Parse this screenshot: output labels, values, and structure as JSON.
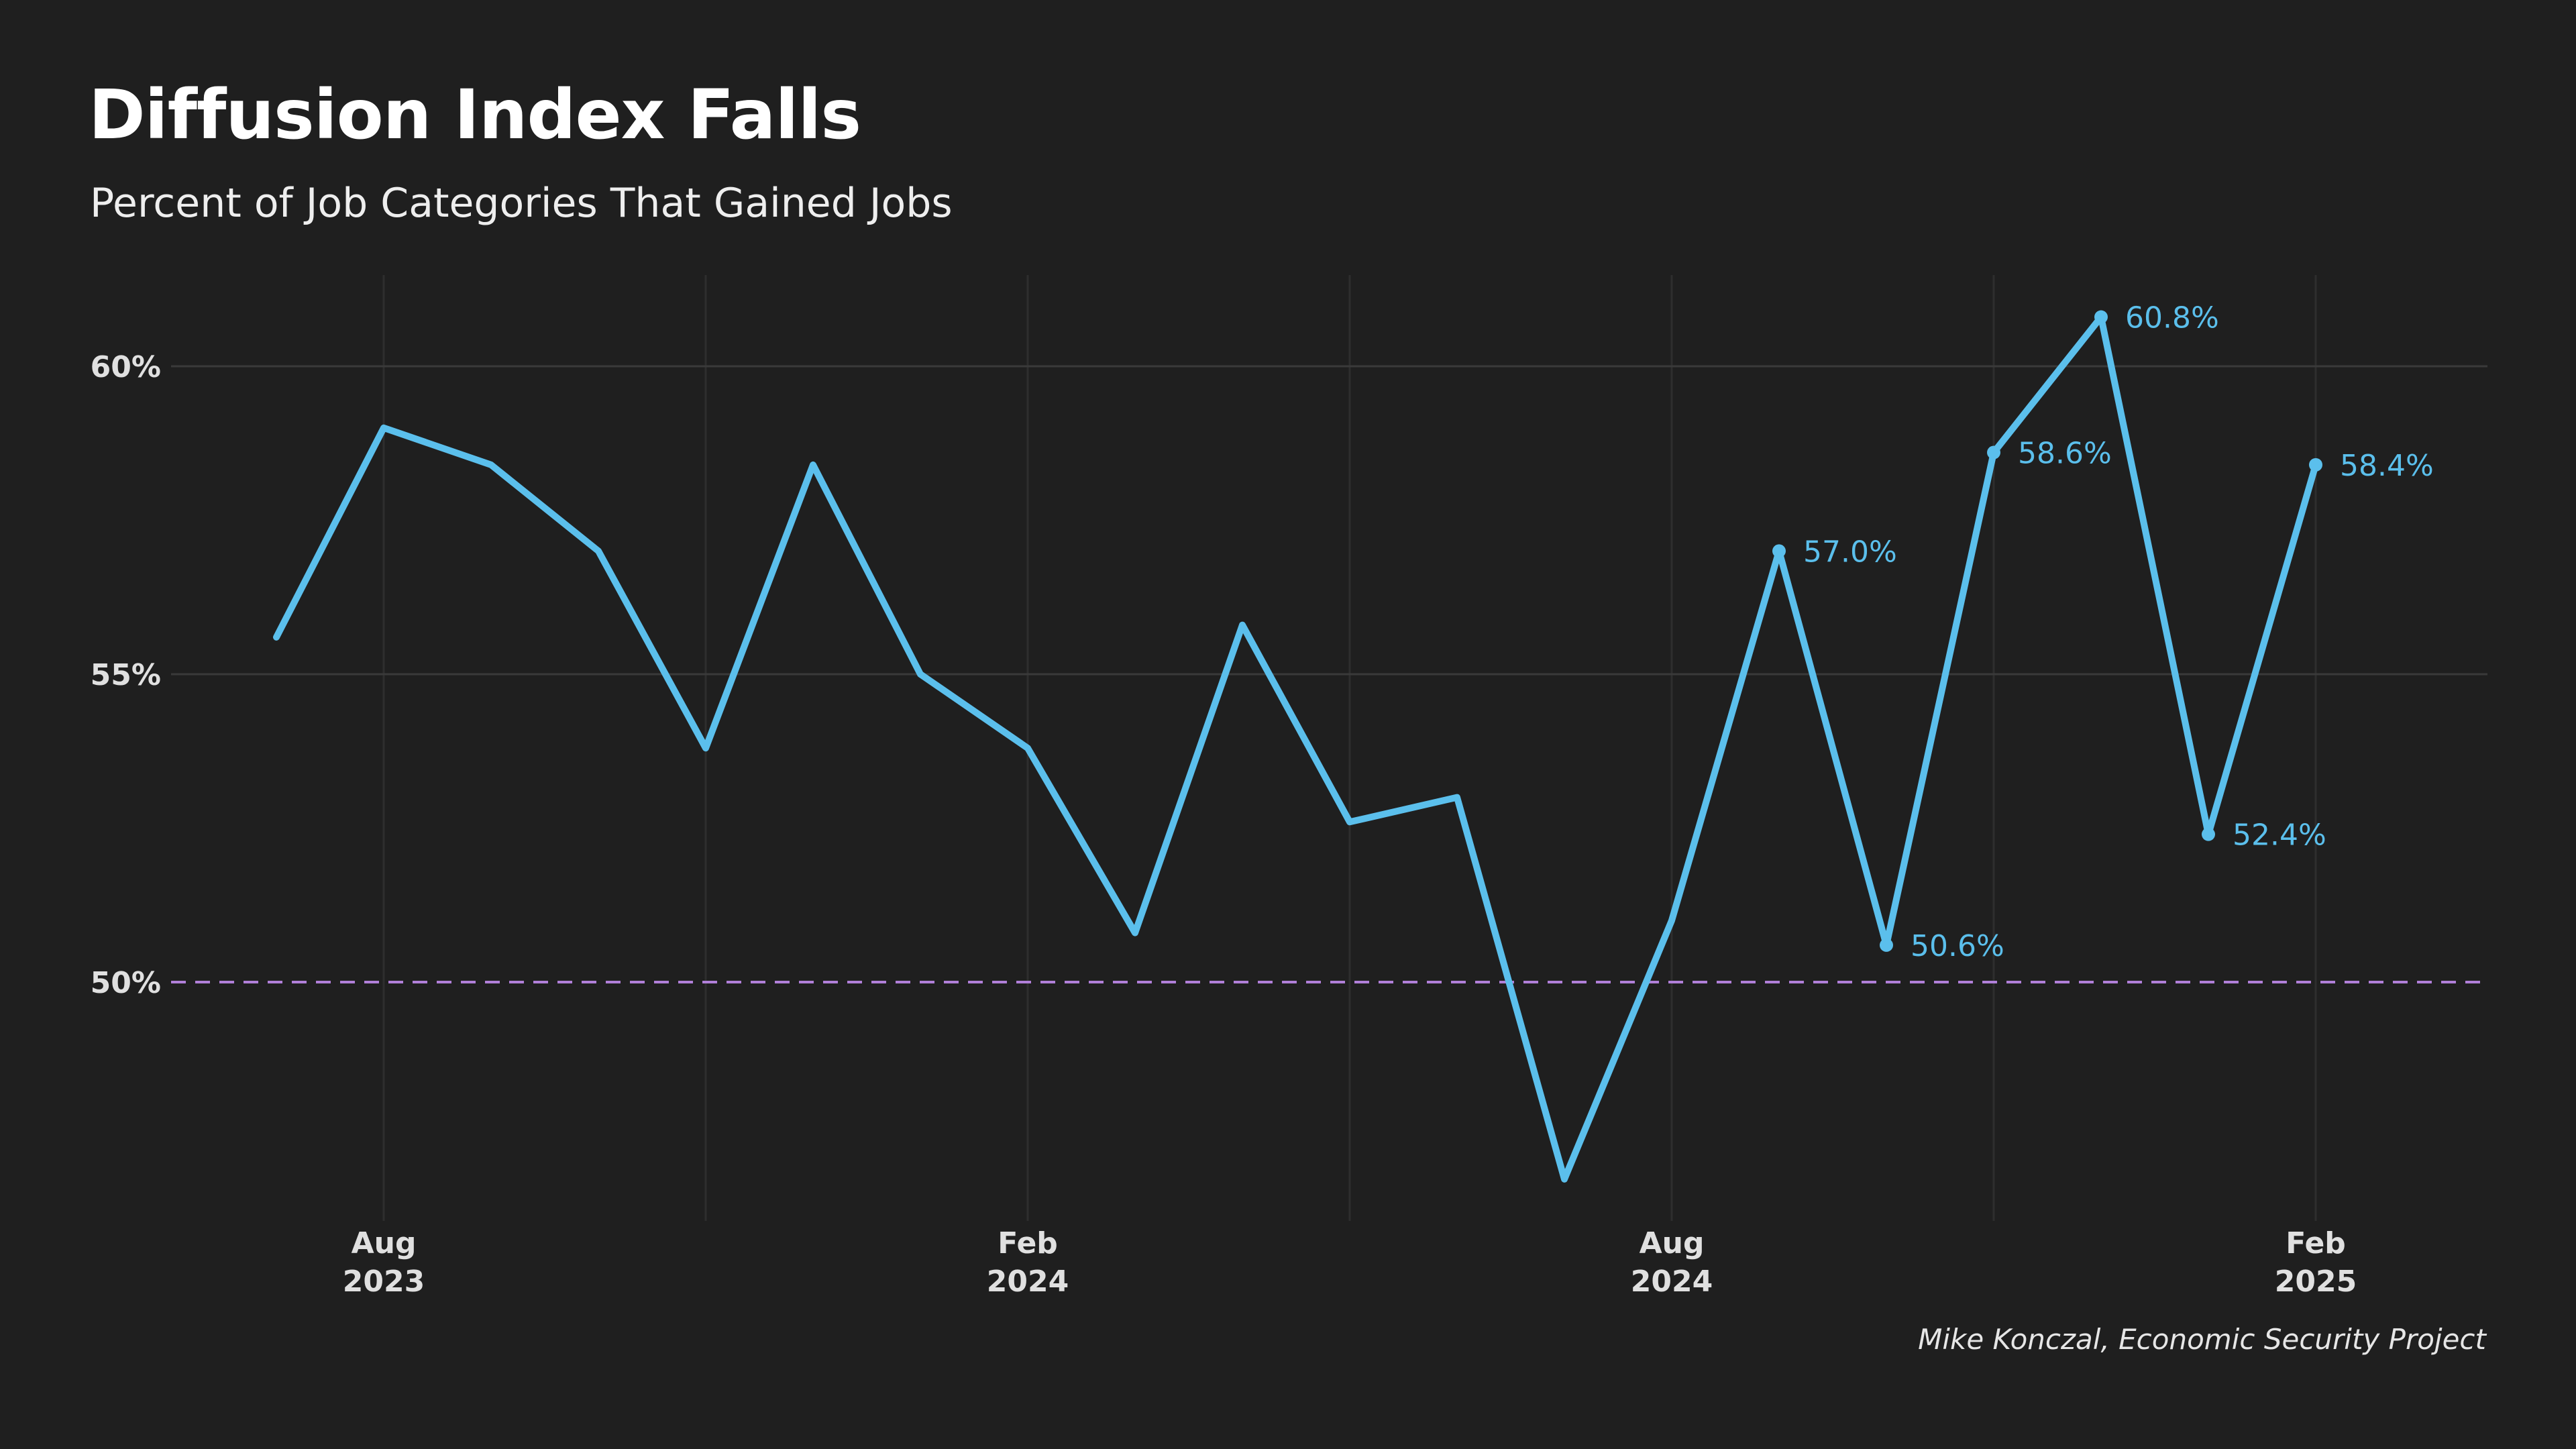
{
  "header": {
    "title": "Diffusion Index Falls",
    "subtitle": "Percent of Job Categories That Gained Jobs"
  },
  "footer": {
    "source": "Mike Konczal, Economic Security Project"
  },
  "colors": {
    "background": "#1f1f1f",
    "line": "#5bbfec",
    "reference_line": "#b07fd8",
    "grid": "#3a3a3a",
    "text": "#ffffff"
  },
  "chart_data": {
    "type": "line",
    "title": "Diffusion Index Falls",
    "subtitle": "Percent of Job Categories That Gained Jobs",
    "x": [
      "2023-07",
      "2023-08",
      "2023-09",
      "2023-10",
      "2023-11",
      "2023-12",
      "2024-01",
      "2024-02",
      "2024-03",
      "2024-04",
      "2024-05",
      "2024-06",
      "2024-07",
      "2024-08",
      "2024-09",
      "2024-10",
      "2024-11",
      "2024-12",
      "2025-01",
      "2025-02"
    ],
    "series": [
      {
        "values": [
          55.6,
          59.0,
          58.4,
          57.0,
          53.8,
          58.4,
          55.0,
          53.8,
          50.8,
          55.8,
          52.6,
          53.0,
          46.8,
          51.0,
          57.0,
          50.6,
          58.6,
          60.8,
          52.4,
          58.4
        ]
      }
    ],
    "data_labels": [
      {
        "x": "2024-09",
        "value": 57.0,
        "text": "57.0%"
      },
      {
        "x": "2024-10",
        "value": 50.6,
        "text": "50.6%"
      },
      {
        "x": "2024-11",
        "value": 58.6,
        "text": "58.6%"
      },
      {
        "x": "2024-12",
        "value": 60.8,
        "text": "60.8%"
      },
      {
        "x": "2025-01",
        "value": 52.4,
        "text": "52.4%"
      },
      {
        "x": "2025-02",
        "value": 58.4,
        "text": "58.4%"
      }
    ],
    "reference_line": {
      "value": 50,
      "style": "dashed"
    },
    "y_ticks": [
      {
        "value": 50,
        "label": "50%"
      },
      {
        "value": 55,
        "label": "55%"
      },
      {
        "value": 60,
        "label": "60%"
      }
    ],
    "x_ticks": [
      {
        "x": "2023-08",
        "line1": "Aug",
        "line2": "2023"
      },
      {
        "x": "2024-02",
        "line1": "Feb",
        "line2": "2024"
      },
      {
        "x": "2024-08",
        "line1": "Aug",
        "line2": "2024"
      },
      {
        "x": "2025-02",
        "line1": "Feb",
        "line2": "2025"
      }
    ],
    "minor_x_grid": [
      "2023-11",
      "2024-05",
      "2024-11"
    ],
    "ylim": [
      45.7,
      61.5
    ],
    "grid": true,
    "legend": "none"
  }
}
